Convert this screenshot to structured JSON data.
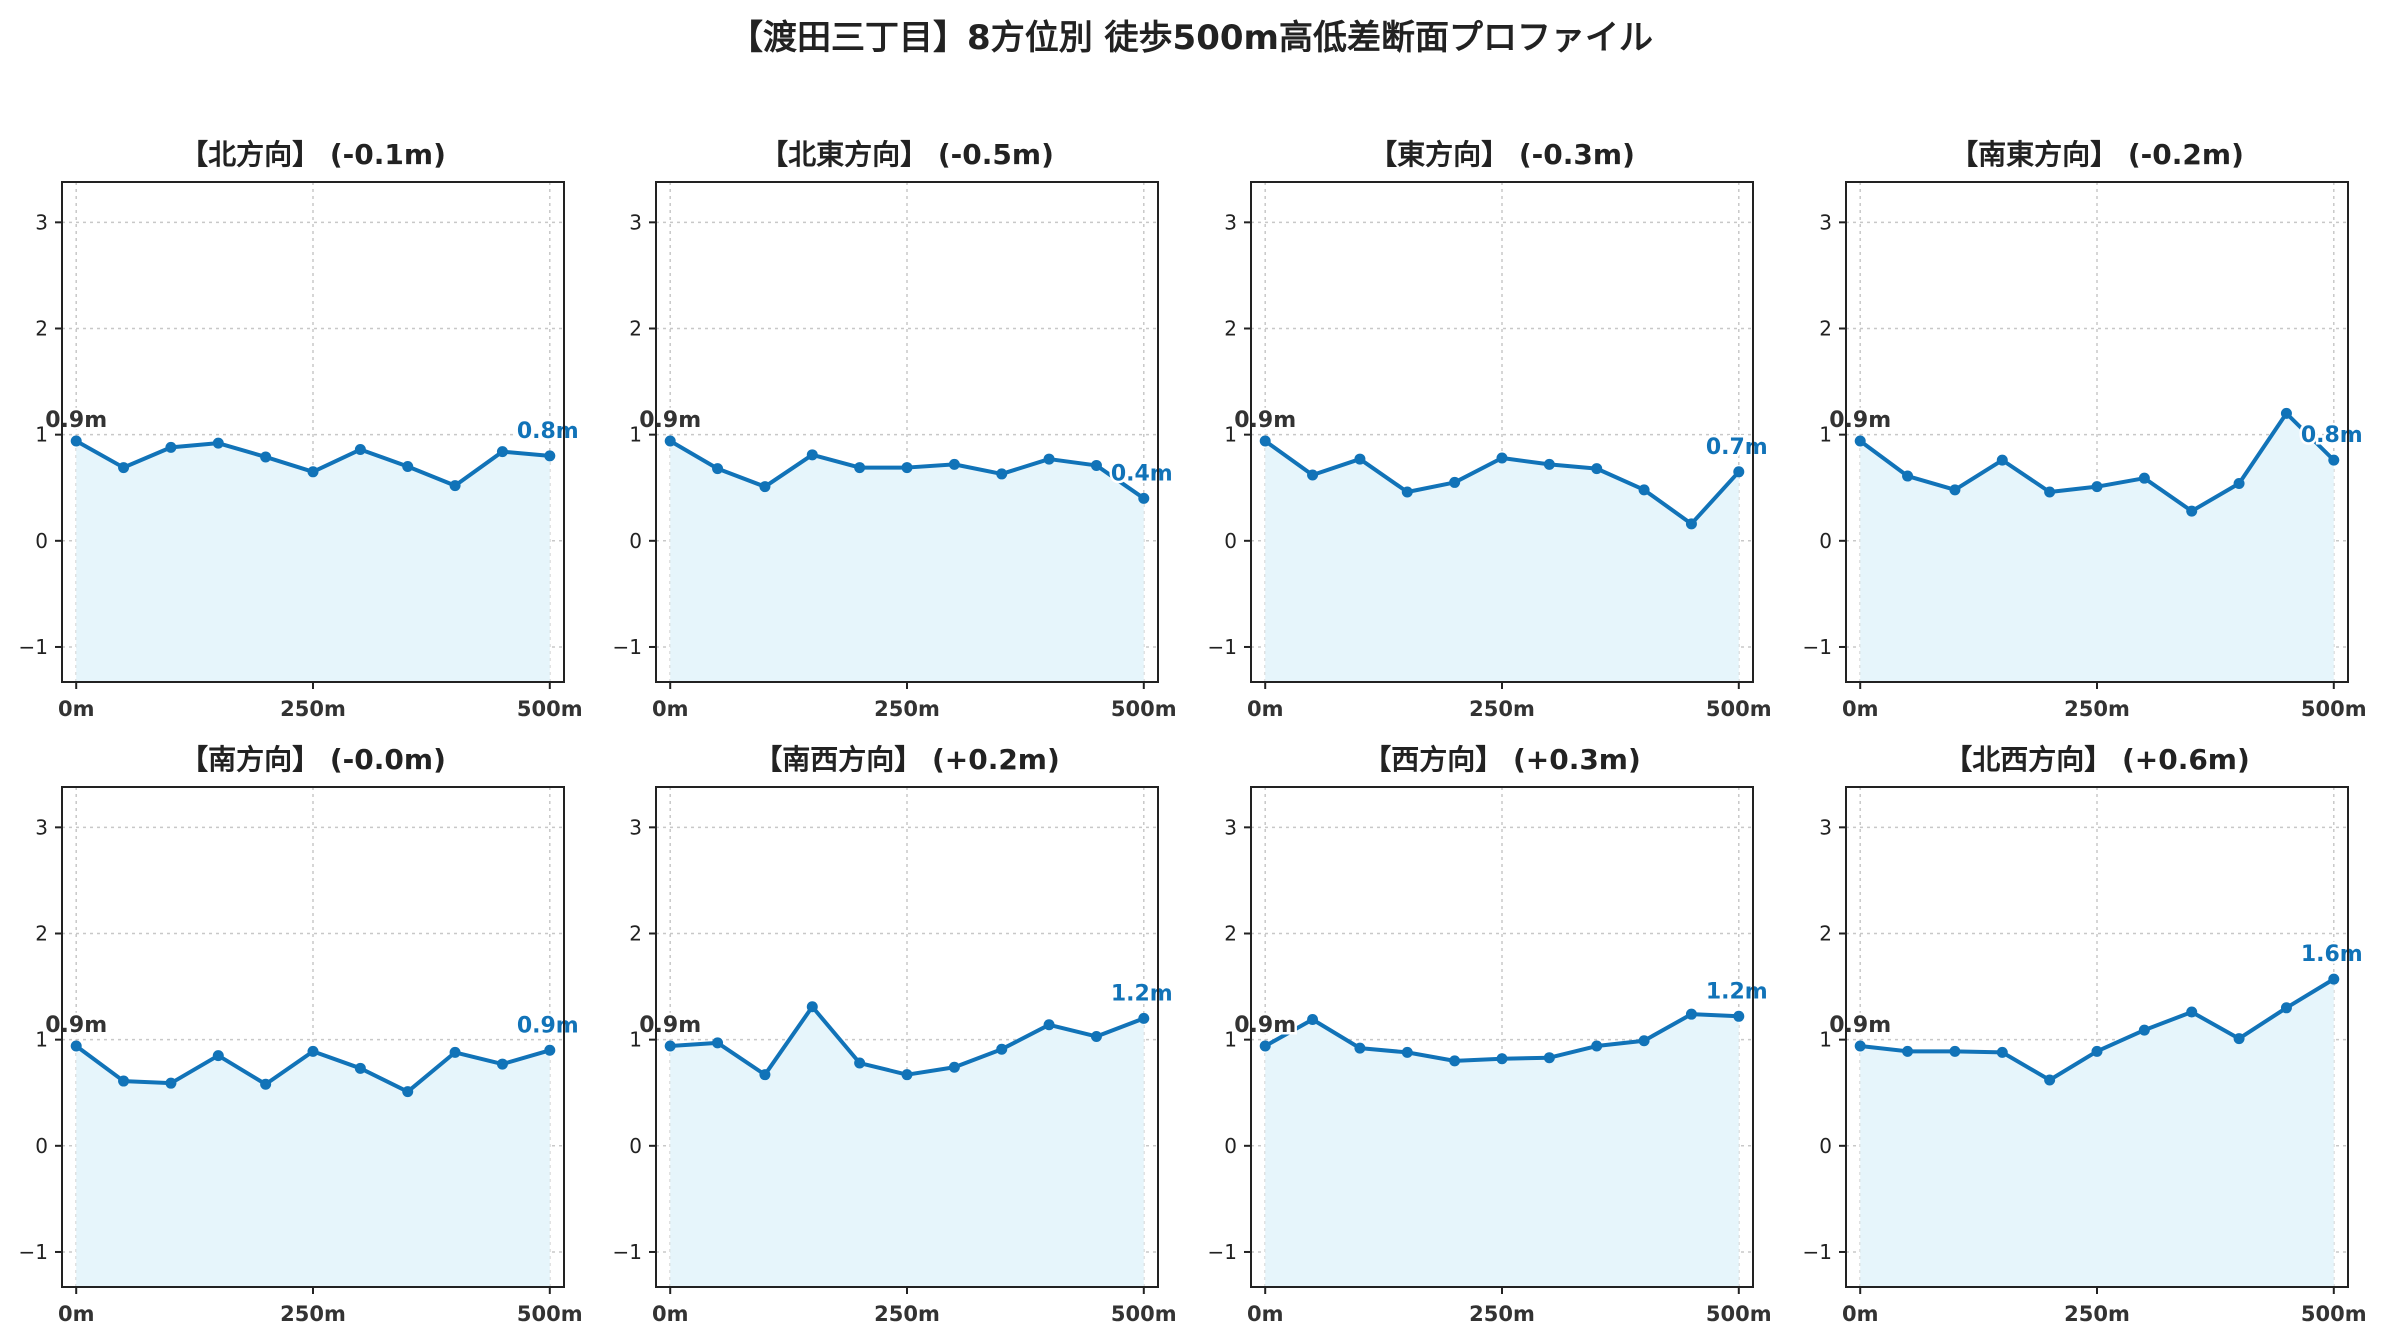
{
  "figure_title": "【渡田三丁目】8方位別 徒歩500m高低差断面プロファイル",
  "colors": {
    "line": "#1173b8",
    "fill": "#e6f5fb",
    "start_label": "#333333",
    "end_label": "#1173b8",
    "grid": "#c8c8c8"
  },
  "chart_data": [
    {
      "type": "line",
      "title": "【北方向】 (-0.1m)",
      "x": [
        0,
        50,
        100,
        150,
        200,
        250,
        300,
        350,
        400,
        450,
        500
      ],
      "values": [
        0.94,
        0.69,
        0.88,
        0.92,
        0.79,
        0.65,
        0.86,
        0.7,
        0.52,
        0.84,
        0.8
      ],
      "start_label": "0.9m",
      "end_label": "0.8m",
      "ylim": [
        -1.33,
        3.38
      ],
      "xlim": [
        -15,
        515
      ],
      "yticks": [
        -1,
        0,
        1,
        2,
        3
      ],
      "ytick_labels": [
        "−1",
        "0",
        "1",
        "2",
        "3"
      ],
      "xticks": [
        0,
        250,
        500
      ],
      "xtick_labels": [
        "0m",
        "250m",
        "500m"
      ],
      "grid": true
    },
    {
      "type": "line",
      "title": "【北東方向】 (-0.5m)",
      "x": [
        0,
        50,
        100,
        150,
        200,
        250,
        300,
        350,
        400,
        450,
        500
      ],
      "values": [
        0.94,
        0.68,
        0.51,
        0.81,
        0.69,
        0.69,
        0.72,
        0.63,
        0.77,
        0.71,
        0.4
      ],
      "start_label": "0.9m",
      "end_label": "0.4m",
      "ylim": [
        -1.33,
        3.38
      ],
      "xlim": [
        -15,
        515
      ],
      "yticks": [
        -1,
        0,
        1,
        2,
        3
      ],
      "ytick_labels": [
        "−1",
        "0",
        "1",
        "2",
        "3"
      ],
      "xticks": [
        0,
        250,
        500
      ],
      "xtick_labels": [
        "0m",
        "250m",
        "500m"
      ],
      "grid": true
    },
    {
      "type": "line",
      "title": "【東方向】 (-0.3m)",
      "x": [
        0,
        50,
        100,
        150,
        200,
        250,
        300,
        350,
        400,
        450,
        500
      ],
      "values": [
        0.94,
        0.62,
        0.77,
        0.46,
        0.55,
        0.78,
        0.72,
        0.68,
        0.48,
        0.16,
        0.65
      ],
      "start_label": "0.9m",
      "end_label": "0.7m",
      "ylim": [
        -1.33,
        3.38
      ],
      "xlim": [
        -15,
        515
      ],
      "yticks": [
        -1,
        0,
        1,
        2,
        3
      ],
      "ytick_labels": [
        "−1",
        "0",
        "1",
        "2",
        "3"
      ],
      "xticks": [
        0,
        250,
        500
      ],
      "xtick_labels": [
        "0m",
        "250m",
        "500m"
      ],
      "grid": true
    },
    {
      "type": "line",
      "title": "【南東方向】 (-0.2m)",
      "x": [
        0,
        50,
        100,
        150,
        200,
        250,
        300,
        350,
        400,
        450,
        500
      ],
      "values": [
        0.94,
        0.61,
        0.48,
        0.76,
        0.46,
        0.51,
        0.59,
        0.28,
        0.54,
        1.2,
        0.76
      ],
      "start_label": "0.9m",
      "end_label": "0.8m",
      "ylim": [
        -1.33,
        3.38
      ],
      "xlim": [
        -15,
        515
      ],
      "yticks": [
        -1,
        0,
        1,
        2,
        3
      ],
      "ytick_labels": [
        "−1",
        "0",
        "1",
        "2",
        "3"
      ],
      "xticks": [
        0,
        250,
        500
      ],
      "xtick_labels": [
        "0m",
        "250m",
        "500m"
      ],
      "grid": true
    },
    {
      "type": "line",
      "title": "【南方向】 (-0.0m)",
      "x": [
        0,
        50,
        100,
        150,
        200,
        250,
        300,
        350,
        400,
        450,
        500
      ],
      "values": [
        0.94,
        0.61,
        0.59,
        0.85,
        0.58,
        0.89,
        0.73,
        0.51,
        0.88,
        0.77,
        0.9
      ],
      "start_label": "0.9m",
      "end_label": "0.9m",
      "ylim": [
        -1.33,
        3.38
      ],
      "xlim": [
        -15,
        515
      ],
      "yticks": [
        -1,
        0,
        1,
        2,
        3
      ],
      "ytick_labels": [
        "−1",
        "0",
        "1",
        "2",
        "3"
      ],
      "xticks": [
        0,
        250,
        500
      ],
      "xtick_labels": [
        "0m",
        "250m",
        "500m"
      ],
      "grid": true
    },
    {
      "type": "line",
      "title": "【南西方向】 (+0.2m)",
      "x": [
        0,
        50,
        100,
        150,
        200,
        250,
        300,
        350,
        400,
        450,
        500
      ],
      "values": [
        0.94,
        0.97,
        0.67,
        1.31,
        0.78,
        0.67,
        0.74,
        0.91,
        1.14,
        1.03,
        1.2
      ],
      "start_label": "0.9m",
      "end_label": "1.2m",
      "ylim": [
        -1.33,
        3.38
      ],
      "xlim": [
        -15,
        515
      ],
      "yticks": [
        -1,
        0,
        1,
        2,
        3
      ],
      "ytick_labels": [
        "−1",
        "0",
        "1",
        "2",
        "3"
      ],
      "xticks": [
        0,
        250,
        500
      ],
      "xtick_labels": [
        "0m",
        "250m",
        "500m"
      ],
      "grid": true
    },
    {
      "type": "line",
      "title": "【西方向】 (+0.3m)",
      "x": [
        0,
        50,
        100,
        150,
        200,
        250,
        300,
        350,
        400,
        450,
        500
      ],
      "values": [
        0.94,
        1.19,
        0.92,
        0.88,
        0.8,
        0.82,
        0.83,
        0.94,
        0.99,
        1.24,
        1.22
      ],
      "start_label": "0.9m",
      "end_label": "1.2m",
      "ylim": [
        -1.33,
        3.38
      ],
      "xlim": [
        -15,
        515
      ],
      "yticks": [
        -1,
        0,
        1,
        2,
        3
      ],
      "ytick_labels": [
        "−1",
        "0",
        "1",
        "2",
        "3"
      ],
      "xticks": [
        0,
        250,
        500
      ],
      "xtick_labels": [
        "0m",
        "250m",
        "500m"
      ],
      "grid": true
    },
    {
      "type": "line",
      "title": "【北西方向】 (+0.6m)",
      "x": [
        0,
        50,
        100,
        150,
        200,
        250,
        300,
        350,
        400,
        450,
        500
      ],
      "values": [
        0.94,
        0.89,
        0.89,
        0.88,
        0.62,
        0.89,
        1.09,
        1.26,
        1.01,
        1.3,
        1.57
      ],
      "start_label": "0.9m",
      "end_label": "1.6m",
      "ylim": [
        -1.33,
        3.38
      ],
      "xlim": [
        -15,
        515
      ],
      "yticks": [
        -1,
        0,
        1,
        2,
        3
      ],
      "ytick_labels": [
        "−1",
        "0",
        "1",
        "2",
        "3"
      ],
      "xticks": [
        0,
        250,
        500
      ],
      "xtick_labels": [
        "0m",
        "250m",
        "500m"
      ],
      "grid": true
    }
  ]
}
